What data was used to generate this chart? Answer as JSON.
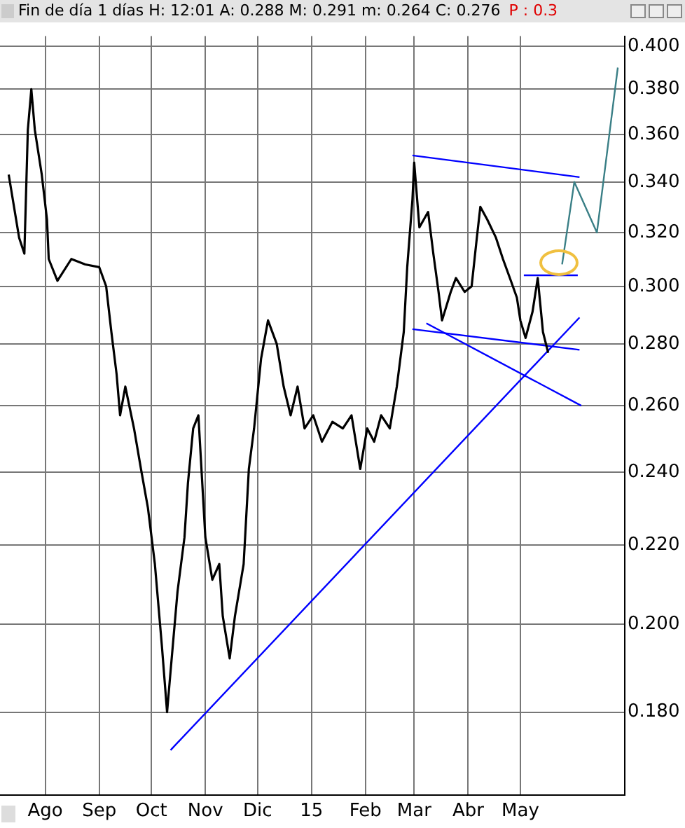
{
  "chart_data": {
    "type": "line",
    "title": "Fin de día 1 días  H: 12:01  A: 0.288  M: 0.291  m: 0.264  C: 0.276",
    "annotations": [
      "P : 0.3"
    ],
    "log": "y",
    "grid": true,
    "marker": "none",
    "xlim": [
      "2014-07-06",
      "2015-06-30"
    ],
    "xticks": [
      {
        "value": "2014-08-01",
        "label": "Ago"
      },
      {
        "value": "2014-09-01",
        "label": "Sep"
      },
      {
        "value": "2014-10-01",
        "label": "Oct"
      },
      {
        "value": "2014-11-01",
        "label": "Nov"
      },
      {
        "value": "2014-12-01",
        "label": "Dic"
      },
      {
        "value": "2015-01-01",
        "label": "15"
      },
      {
        "value": "2015-02-01",
        "label": "Feb"
      },
      {
        "value": "2015-03-01",
        "label": "Mar"
      },
      {
        "value": "2015-04-01",
        "label": "Abr"
      },
      {
        "value": "2015-05-01",
        "label": "May"
      }
    ],
    "ylim": [
      0.163,
      0.405
    ],
    "yticks": [
      {
        "value": 0.18,
        "label": "0.180"
      },
      {
        "value": 0.2,
        "label": "0.200"
      },
      {
        "value": 0.22,
        "label": "0.220"
      },
      {
        "value": 0.24,
        "label": "0.240"
      },
      {
        "value": 0.26,
        "label": "0.260"
      },
      {
        "value": 0.28,
        "label": "0.280"
      },
      {
        "value": 0.3,
        "label": "0.300"
      },
      {
        "value": 0.32,
        "label": "0.320"
      },
      {
        "value": 0.34,
        "label": "0.340"
      },
      {
        "value": 0.36,
        "label": "0.360"
      },
      {
        "value": 0.38,
        "label": "0.380"
      },
      {
        "value": 0.4,
        "label": "0.400"
      }
    ],
    "series": [
      {
        "type": "line",
        "color": "#000000",
        "x": [
          "2014-07-11",
          "2014-07-17",
          "2014-07-20",
          "2014-07-22",
          "2014-07-24",
          "2014-07-26",
          "2014-07-30",
          "2014-08-02",
          "2014-08-03",
          "2014-08-08",
          "2014-08-16",
          "2014-08-24",
          "2014-09-01",
          "2014-09-05",
          "2014-09-08",
          "2014-09-11",
          "2014-09-13",
          "2014-09-16",
          "2014-09-21",
          "2014-09-25",
          "2014-09-29",
          "2014-10-03",
          "2014-10-07",
          "2014-10-10",
          "2014-10-12",
          "2014-10-16",
          "2014-10-20",
          "2014-10-22",
          "2014-10-25",
          "2014-10-28",
          "2014-11-01",
          "2014-11-05",
          "2014-11-09",
          "2014-11-11",
          "2014-11-15",
          "2014-11-18",
          "2014-11-23",
          "2014-11-26",
          "2014-11-29",
          "2014-12-03",
          "2014-12-07",
          "2014-12-12",
          "2014-12-16",
          "2014-12-20",
          "2014-12-24",
          "2014-12-28",
          "2015-01-02",
          "2015-01-07",
          "2015-01-13",
          "2015-01-19",
          "2015-01-24",
          "2015-01-29",
          "2015-02-02",
          "2015-02-06",
          "2015-02-10",
          "2015-02-15",
          "2015-02-19",
          "2015-02-23",
          "2015-02-25",
          "2015-02-28",
          "2015-03-01",
          "2015-03-04",
          "2015-03-09",
          "2015-03-12",
          "2015-03-15",
          "2015-03-17",
          "2015-03-22",
          "2015-03-25",
          "2015-03-30",
          "2015-04-03",
          "2015-04-06",
          "2015-04-08",
          "2015-04-12",
          "2015-04-17",
          "2015-04-21",
          "2015-04-25",
          "2015-04-29",
          "2015-05-01",
          "2015-05-04",
          "2015-05-08",
          "2015-05-11",
          "2015-05-14",
          "2015-05-17"
        ],
        "values": [
          0.343,
          0.318,
          0.312,
          0.362,
          0.38,
          0.362,
          0.343,
          0.325,
          0.31,
          0.302,
          0.31,
          0.308,
          0.307,
          0.3,
          0.284,
          0.27,
          0.257,
          0.266,
          0.253,
          0.241,
          0.23,
          0.215,
          0.195,
          0.18,
          0.189,
          0.208,
          0.222,
          0.237,
          0.253,
          0.257,
          0.222,
          0.211,
          0.215,
          0.202,
          0.192,
          0.202,
          0.215,
          0.241,
          0.253,
          0.275,
          0.288,
          0.28,
          0.266,
          0.257,
          0.266,
          0.253,
          0.257,
          0.249,
          0.255,
          0.253,
          0.257,
          0.241,
          0.253,
          0.249,
          0.257,
          0.253,
          0.266,
          0.284,
          0.307,
          0.333,
          0.348,
          0.322,
          0.328,
          0.312,
          0.298,
          0.288,
          0.298,
          0.303,
          0.298,
          0.3,
          0.318,
          0.33,
          0.325,
          0.318,
          0.31,
          0.303,
          0.296,
          0.288,
          0.282,
          0.291,
          0.303,
          0.284,
          0.277
        ]
      },
      {
        "type": "line",
        "color": "#0000ff",
        "x": [
          "2014-10-12",
          "2015-06-04"
        ],
        "values": [
          0.172,
          0.289
        ]
      },
      {
        "type": "line",
        "color": "#0000ff",
        "x": [
          "2015-02-28",
          "2015-06-04"
        ],
        "values": [
          0.351,
          0.342
        ]
      },
      {
        "type": "line",
        "color": "#0000ff",
        "x": [
          "2015-02-28",
          "2015-06-04"
        ],
        "values": [
          0.285,
          0.278
        ]
      },
      {
        "type": "line",
        "color": "#0000ff",
        "x": [
          "2015-03-08",
          "2015-06-05"
        ],
        "values": [
          0.287,
          0.26
        ]
      },
      {
        "type": "line",
        "color": "#0000ff",
        "x": [
          "2015-05-03",
          "2015-06-03"
        ],
        "values": [
          0.304,
          0.304
        ]
      },
      {
        "type": "line",
        "color": "#3a7f86",
        "x": [
          "2015-05-25",
          "2015-06-01",
          "2015-06-14",
          "2015-06-26"
        ],
        "values": [
          0.308,
          0.34,
          0.32,
          0.39
        ]
      }
    ]
  }
}
